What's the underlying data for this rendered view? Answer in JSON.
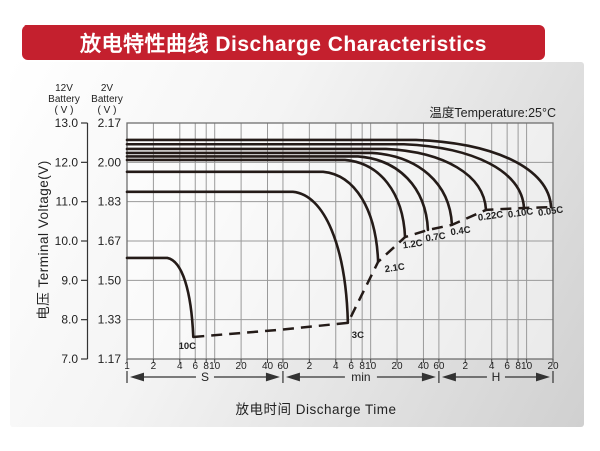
{
  "banner": {
    "title": "放电特性曲线 Discharge Characteristics"
  },
  "chart": {
    "temperature_note": "温度Temperature:25°C",
    "x_title": "放电时间 Discharge Time",
    "y_title": "电压 Terminal Voltage(V)",
    "y_axis_12v": {
      "header": [
        "12V",
        "Battery",
        "( V )"
      ],
      "ticks": [
        "13.0",
        "12.0",
        "11.0",
        "10.0",
        "9.0",
        "8.0",
        "7.0"
      ]
    },
    "y_axis_2v": {
      "header": [
        "2V",
        "Battery",
        "( V )"
      ],
      "ticks": [
        "2.17",
        "2.00",
        "1.83",
        "1.67",
        "1.50",
        "1.33",
        "1.17"
      ]
    },
    "x_sections": [
      {
        "label": "S",
        "unit_s": 1,
        "ticks": [
          1,
          2,
          4,
          6,
          8,
          10,
          20,
          40,
          60
        ]
      },
      {
        "label": "min",
        "unit_s": 60,
        "ticks": [
          2,
          4,
          6,
          8,
          10,
          20,
          40,
          60
        ]
      },
      {
        "label": "H",
        "unit_s": 3600,
        "ticks": [
          2,
          4,
          6,
          8,
          10,
          20
        ]
      }
    ]
  },
  "chart_data": {
    "type": "line",
    "title": "Discharge Characteristics",
    "x_scale": "log-time",
    "x_range_seconds": [
      1,
      72000
    ],
    "xlabel": "Discharge Time (S / min / H, log scale)",
    "ylabel": "Terminal Voltage (V)",
    "ylim_12v": [
      7.0,
      13.0
    ],
    "ylim_2v": [
      1.17,
      2.17
    ],
    "grid": true,
    "temperature_c": 25,
    "series": [
      {
        "name": "10C",
        "plateau_v": 9.57,
        "end_time_s": 5.7,
        "end_v": 7.56
      },
      {
        "name": "3C",
        "plateau_v": 11.25,
        "end_time_s": 330,
        "end_v": 7.92
      },
      {
        "name": "2.1C",
        "plateau_v": 11.76,
        "end_time_s": 730,
        "end_v": 9.47
      },
      {
        "name": "1.2C",
        "plateau_v": 12.06,
        "end_time_s": 1480,
        "end_v": 10.1
      },
      {
        "name": "0.7C",
        "plateau_v": 12.15,
        "end_time_s": 2700,
        "end_v": 10.28
      },
      {
        "name": "0.4C",
        "plateau_v": 12.24,
        "end_time_s": 5070,
        "end_v": 10.41
      },
      {
        "name": "0.22C",
        "plateau_v": 12.34,
        "end_time_s": 12400,
        "end_v": 10.79
      },
      {
        "name": "0.10C",
        "plateau_v": 12.46,
        "end_time_s": 33600,
        "end_v": 10.84
      },
      {
        "name": "0.05C",
        "plateau_v": 12.57,
        "end_time_s": 68400,
        "end_v": 10.86
      }
    ],
    "cutoff_locus_dashed": [
      [
        5.7,
        7.56
      ],
      [
        60,
        7.75
      ],
      [
        330,
        7.92
      ],
      [
        730,
        9.47
      ],
      [
        1480,
        10.1
      ],
      [
        2700,
        10.28
      ],
      [
        5070,
        10.41
      ],
      [
        12400,
        10.79
      ],
      [
        33600,
        10.84
      ],
      [
        68400,
        10.86
      ]
    ]
  },
  "colors": {
    "banner_red": "#c4202e",
    "curve": "#241b18",
    "rate_label": "#e8486e",
    "grid": "#9a9a9a",
    "frame": "#6f6f6f",
    "text": "#222222"
  }
}
